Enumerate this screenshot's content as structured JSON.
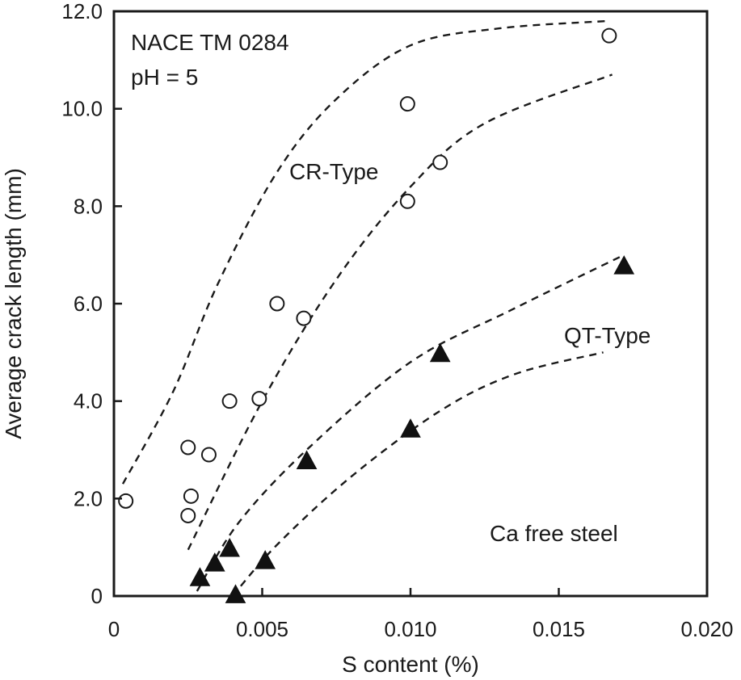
{
  "chart_data": {
    "type": "scatter",
    "title": "",
    "xlabel": "S content (%)",
    "ylabel": "Average crack length (mm)",
    "xlim": [
      0,
      0.02
    ],
    "ylim": [
      0,
      12.0
    ],
    "x_ticks": [
      {
        "value": 0,
        "label": "0"
      },
      {
        "value": 0.005,
        "label": "0.005"
      },
      {
        "value": 0.01,
        "label": "0.010"
      },
      {
        "value": 0.015,
        "label": "0.015"
      },
      {
        "value": 0.02,
        "label": "0.020"
      }
    ],
    "y_ticks": [
      {
        "value": 0,
        "label": "0"
      },
      {
        "value": 2,
        "label": "2.0"
      },
      {
        "value": 4,
        "label": "4.0"
      },
      {
        "value": 6,
        "label": "6.0"
      },
      {
        "value": 8,
        "label": "8.0"
      },
      {
        "value": 10,
        "label": "10.0"
      },
      {
        "value": 12,
        "label": "12.0"
      }
    ],
    "grid": false,
    "annotations": {
      "method": "NACE TM 0284",
      "ph": "pH = 5",
      "cr_label": "CR-Type",
      "qt_label": "QT-Type",
      "steel": "Ca free steel"
    },
    "series": [
      {
        "name": "CR-Type",
        "marker": "open-circle",
        "points": [
          [
            0.0004,
            1.95
          ],
          [
            0.0025,
            3.05
          ],
          [
            0.0026,
            2.05
          ],
          [
            0.0025,
            1.65
          ],
          [
            0.0032,
            2.9
          ],
          [
            0.0039,
            4.0
          ],
          [
            0.0049,
            4.05
          ],
          [
            0.0055,
            6.0
          ],
          [
            0.0064,
            5.7
          ],
          [
            0.0099,
            10.1
          ],
          [
            0.0099,
            8.1
          ],
          [
            0.011,
            8.9
          ],
          [
            0.0167,
            11.5
          ]
        ]
      },
      {
        "name": "QT-Type",
        "marker": "filled-triangle",
        "points": [
          [
            0.0029,
            0.35
          ],
          [
            0.0034,
            0.65
          ],
          [
            0.0039,
            0.95
          ],
          [
            0.0051,
            0.7
          ],
          [
            0.0041,
            0.0
          ],
          [
            0.0065,
            2.75
          ],
          [
            0.01,
            3.4
          ],
          [
            0.011,
            4.95
          ],
          [
            0.0172,
            6.75
          ]
        ]
      }
    ],
    "trend_curves": [
      {
        "group": "CR-Type",
        "points": [
          [
            0.0003,
            2.3
          ],
          [
            0.002,
            4.2
          ],
          [
            0.0035,
            6.4
          ],
          [
            0.0055,
            8.7
          ],
          [
            0.0075,
            10.2
          ],
          [
            0.01,
            11.3
          ],
          [
            0.013,
            11.65
          ],
          [
            0.0166,
            11.8
          ]
        ]
      },
      {
        "group": "CR-Type",
        "points": [
          [
            0.0025,
            0.95
          ],
          [
            0.005,
            4.0
          ],
          [
            0.0075,
            6.5
          ],
          [
            0.01,
            8.4
          ],
          [
            0.0125,
            9.7
          ],
          [
            0.0168,
            10.7
          ]
        ]
      },
      {
        "group": "QT-Type",
        "points": [
          [
            0.0028,
            0.1
          ],
          [
            0.0042,
            1.5
          ],
          [
            0.0065,
            3.0
          ],
          [
            0.01,
            4.8
          ],
          [
            0.0135,
            5.9
          ],
          [
            0.0172,
            7.0
          ]
        ]
      },
      {
        "group": "QT-Type",
        "points": [
          [
            0.004,
            0.0
          ],
          [
            0.0055,
            1.05
          ],
          [
            0.008,
            2.45
          ],
          [
            0.011,
            3.8
          ],
          [
            0.0135,
            4.55
          ],
          [
            0.0165,
            5.0
          ]
        ]
      }
    ]
  }
}
